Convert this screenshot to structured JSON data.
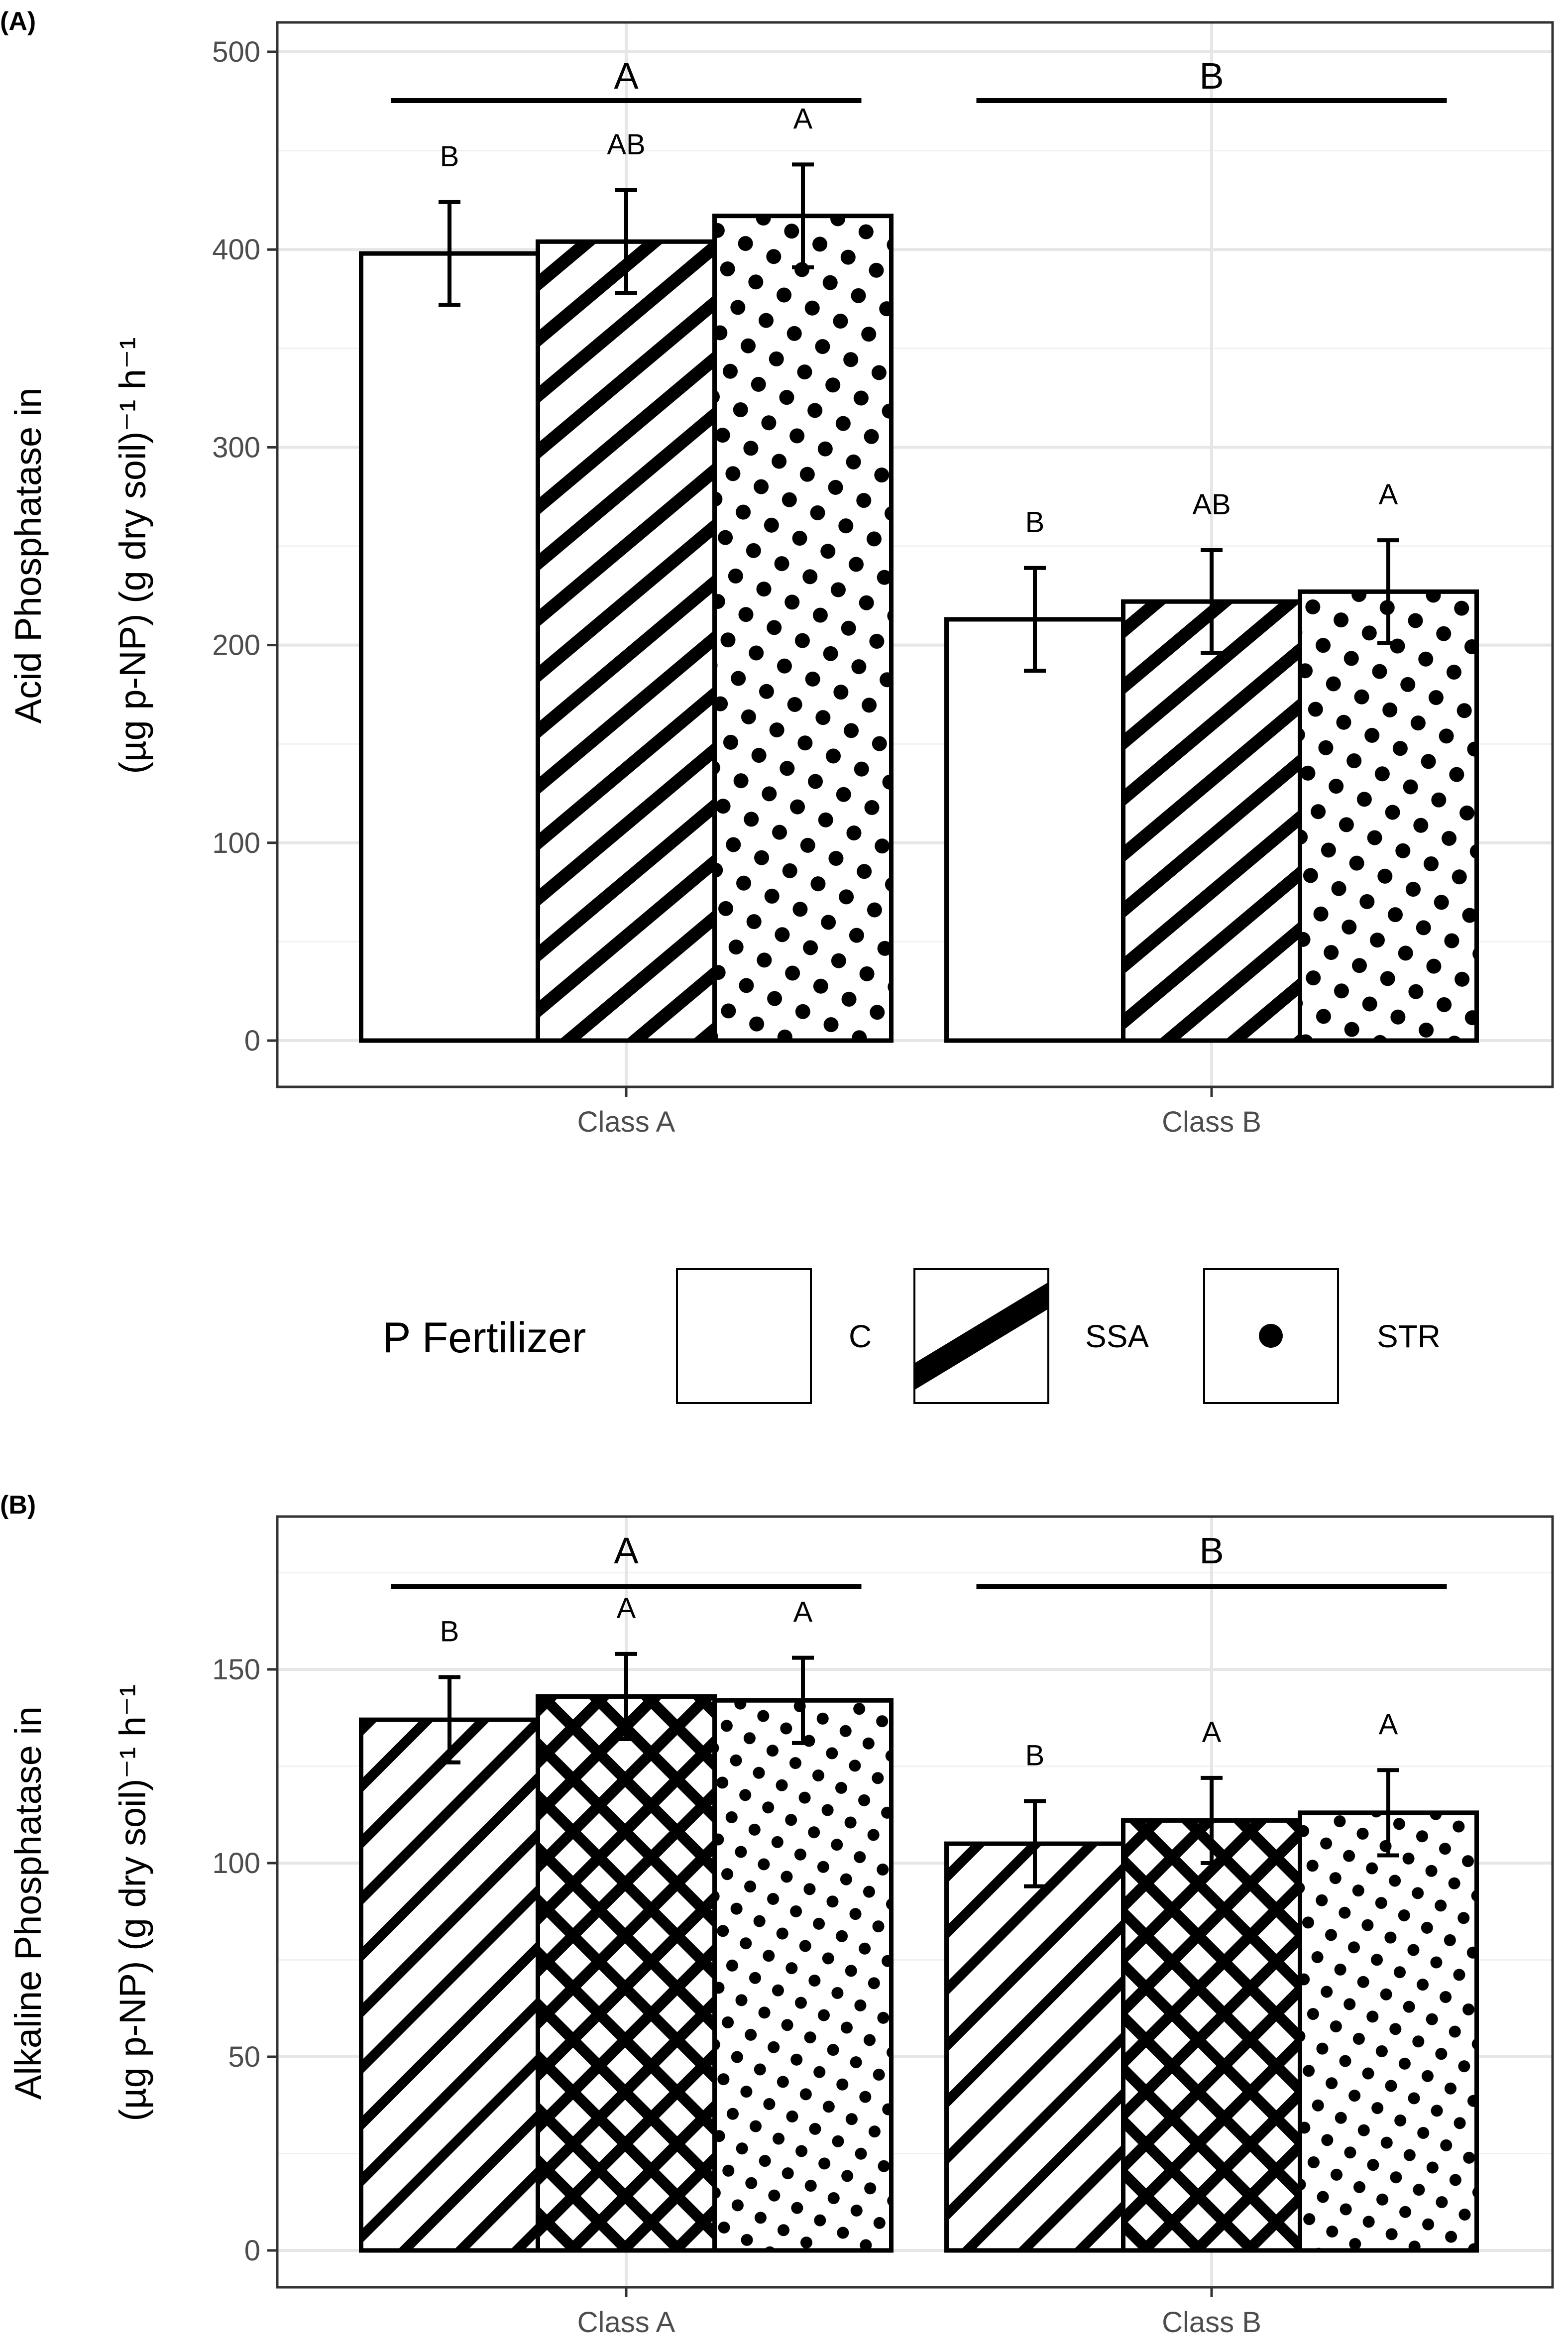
{
  "legend": {
    "title": "P Fertilizer",
    "items": [
      {
        "label": "C"
      },
      {
        "label": "SSA"
      },
      {
        "label": "STR"
      }
    ]
  },
  "chart_data": [
    {
      "panel": "(A)",
      "type": "bar",
      "ylabel": "Acid Phosphatase in",
      "ylabel_line2": "(µg p-NP) (g dry soil)⁻¹ h⁻¹",
      "ylim": [
        0,
        500
      ],
      "yticks": [
        0,
        100,
        200,
        300,
        400,
        500
      ],
      "grid": true,
      "categories": [
        "Class A",
        "Class B"
      ],
      "group_letters": [
        "A",
        "B"
      ],
      "series": [
        {
          "name": "C",
          "pattern": "blank",
          "values": [
            398,
            213
          ],
          "err": [
            26,
            26
          ],
          "letters": [
            "B",
            "B"
          ]
        },
        {
          "name": "SSA",
          "pattern": "hatch",
          "values": [
            404,
            222
          ],
          "err": [
            26,
            26
          ],
          "letters": [
            "AB",
            "AB"
          ]
        },
        {
          "name": "STR",
          "pattern": "dots",
          "values": [
            417,
            227
          ],
          "err": [
            26,
            26
          ],
          "letters": [
            "A",
            "A"
          ]
        }
      ]
    },
    {
      "panel": "(B)",
      "type": "bar",
      "ylabel": "Alkaline Phosphatase in",
      "ylabel_line2": "(µg p-NP) (g dry soil)⁻¹ h⁻¹",
      "ylim": [
        -7,
        182
      ],
      "yticks": [
        0,
        50,
        100,
        150
      ],
      "grid": true,
      "categories": [
        "Class A",
        "Class B"
      ],
      "group_letters": [
        "A",
        "B"
      ],
      "series": [
        {
          "pattern": "hatch",
          "values": [
            137,
            105
          ],
          "err": [
            11,
            11
          ],
          "letters": [
            "B",
            "B"
          ]
        },
        {
          "pattern": "crosshatch",
          "values": [
            143,
            111
          ],
          "err": [
            11,
            11
          ],
          "letters": [
            "A",
            "A"
          ]
        },
        {
          "pattern": "dots",
          "values": [
            142,
            113
          ],
          "err": [
            11,
            11
          ],
          "letters": [
            "A",
            "A"
          ]
        }
      ]
    }
  ]
}
